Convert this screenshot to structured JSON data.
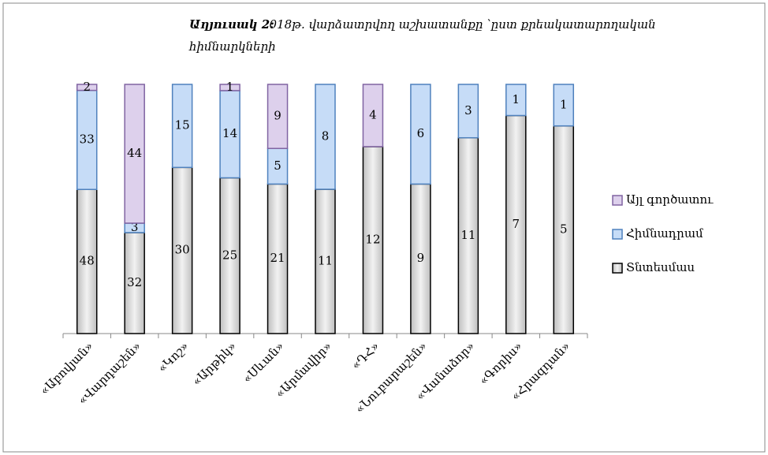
{
  "chart_data": {
    "type": "bar",
    "stacked": "percent",
    "title_prefix": "Աղյուսակ 2:",
    "title": "2018թ. վարձատրվող աշխատանքը ՝ըստ քրեակատարողական",
    "title_line2": "հիմնարկների",
    "categories": [
      "«Աբովյան»",
      "«Վարդաշեն»",
      "«Կոշ»",
      "«Արթիկ»",
      "«Սևան»",
      "«Արմավիր»",
      "«ԴՀ»",
      "«Նուբարաշեն»",
      "«Վանաձոր»",
      "«Գորիս»",
      "«Հրազդան»"
    ],
    "series": [
      {
        "name": "Տնտեսմաս",
        "color": "#d9d9d9",
        "values": [
          48,
          32,
          30,
          25,
          21,
          11,
          12,
          9,
          11,
          7,
          5
        ]
      },
      {
        "name": "Հիմնադրամ",
        "color": "#c6dcf7",
        "values": [
          33,
          3,
          15,
          14,
          5,
          8,
          null,
          6,
          3,
          1,
          1
        ]
      },
      {
        "name": "Այլ գործատու",
        "color": "#ddd0ec",
        "values": [
          2,
          44,
          null,
          1,
          9,
          null,
          4,
          null,
          null,
          null,
          null
        ]
      }
    ],
    "legend": "right"
  }
}
